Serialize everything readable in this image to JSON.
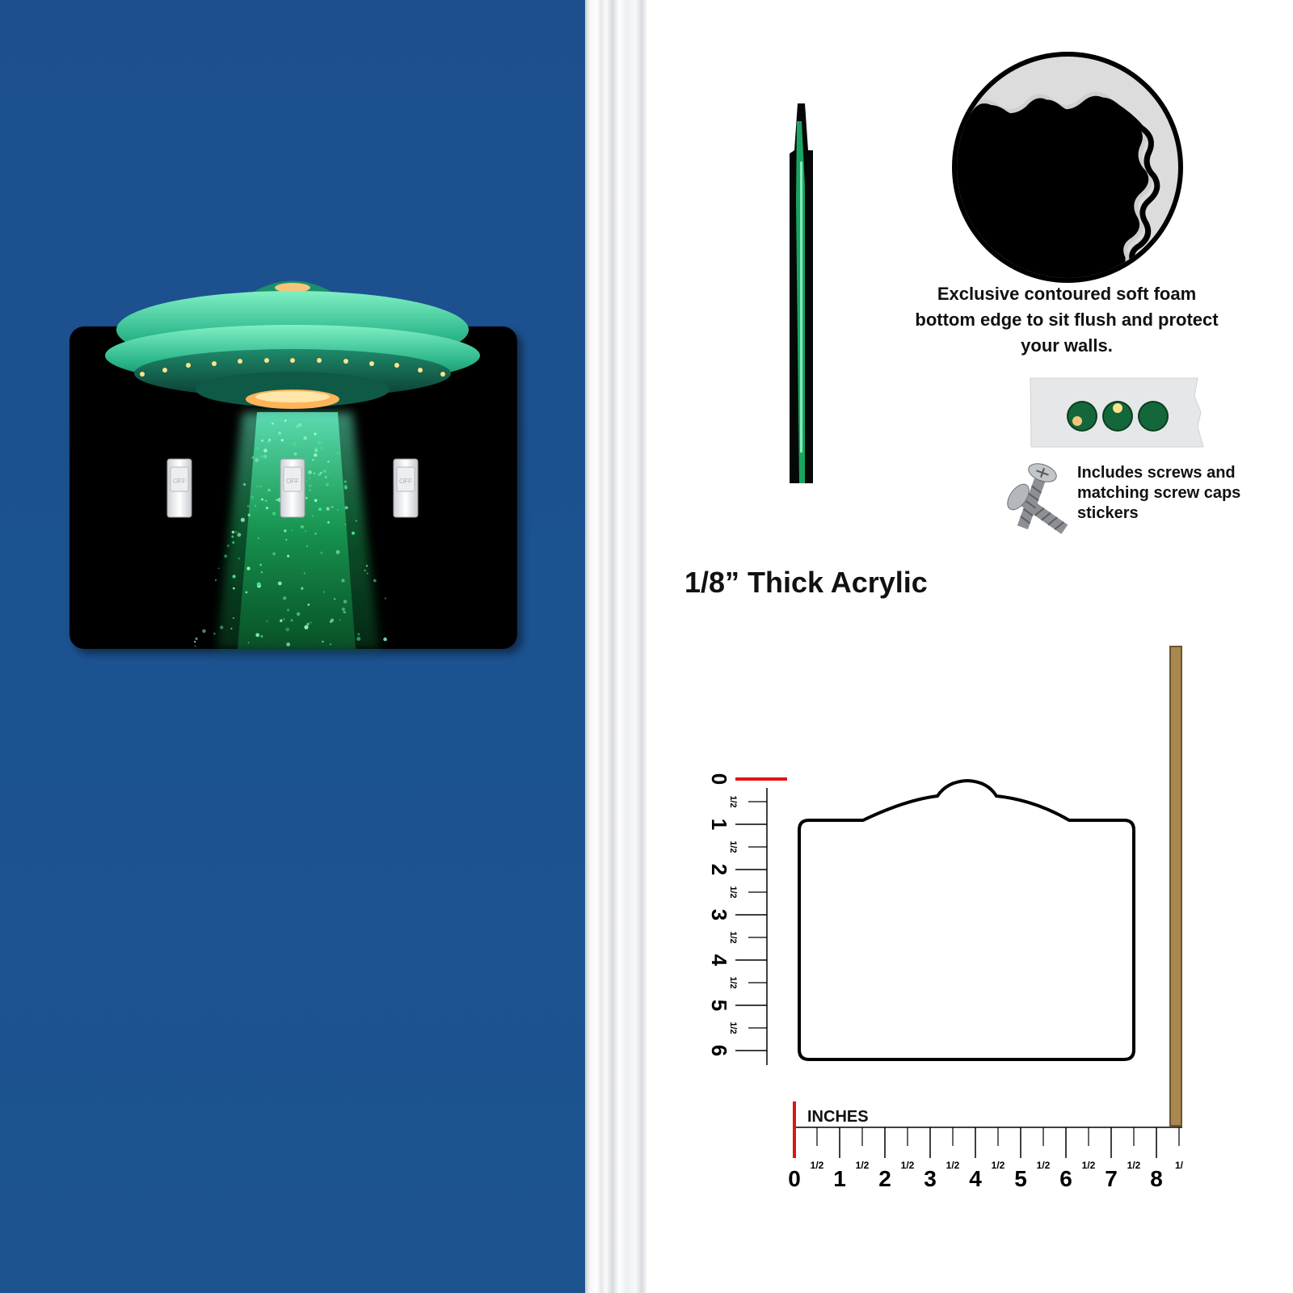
{
  "product": {
    "switch_labels": [
      "OFF",
      "OFF",
      "OFF"
    ]
  },
  "features": {
    "foam_caption_lines": [
      "Exclusive contoured soft foam",
      "bottom edge to sit flush and protect",
      "your walls."
    ],
    "screws_caption_lines": [
      "Includes screws and",
      "matching screw caps",
      "stickers"
    ],
    "thickness_label": "1/8” Thick Acrylic"
  },
  "ruler": {
    "units_label": "INCHES",
    "horizontal_numbers": [
      "0",
      "1",
      "2",
      "3",
      "4",
      "5",
      "6",
      "7",
      "8"
    ],
    "vertical_numbers": [
      "0",
      "1",
      "2",
      "3",
      "4",
      "5",
      "6"
    ],
    "half_mark": "1/2",
    "horizontal_trailing_label": "1/"
  },
  "colors": {
    "wall": "#1d5290",
    "plate": "#000000",
    "ufo_glow": "#22d47a",
    "ruler_zero": "#e01515",
    "edge_strip": "#a9874f"
  },
  "icons": [
    "ufo-art",
    "light-switch-icon",
    "screw-icon",
    "foam-edge-closeup",
    "screw-cap-sticker-icon"
  ]
}
